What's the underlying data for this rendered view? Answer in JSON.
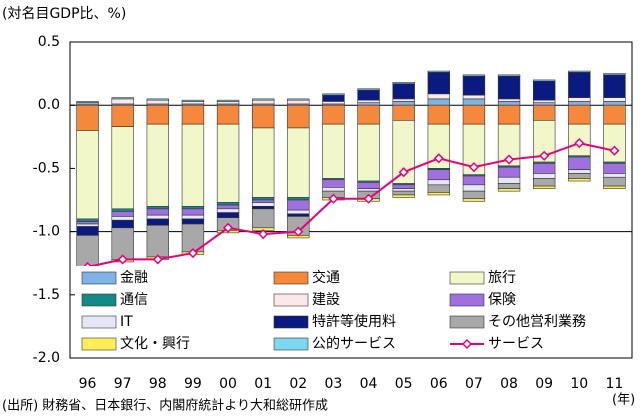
{
  "chart_data": {
    "type": "bar",
    "stacked": true,
    "y_unit_label": "(対名目GDP比、%)",
    "x_unit_label": "(年)",
    "source": "(出所) 財務省、日本銀行、内閣府統計より大和総研作成",
    "categories": [
      "96",
      "97",
      "98",
      "99",
      "00",
      "01",
      "02",
      "03",
      "04",
      "05",
      "06",
      "07",
      "08",
      "09",
      "10",
      "11"
    ],
    "ylim": [
      -2.0,
      0.5
    ],
    "yticks": [
      {
        "value": 0.5,
        "label": "0.5"
      },
      {
        "value": 0.0,
        "label": "0.0"
      },
      {
        "value": -0.5,
        "label": "-0.5"
      },
      {
        "value": -1.0,
        "label": "-1.0"
      },
      {
        "value": -1.5,
        "label": "-1.5"
      },
      {
        "value": -2.0,
        "label": "-2.0"
      }
    ],
    "hlines": [
      0.0,
      -1.0
    ],
    "series": [
      {
        "name": "金融",
        "color": "#7fb2e5",
        "values": [
          0.01,
          0.01,
          0.01,
          0.01,
          0.01,
          0.01,
          0.01,
          0.01,
          0.02,
          0.03,
          0.05,
          0.05,
          0.03,
          0.02,
          0.03,
          0.03
        ]
      },
      {
        "name": "交通",
        "color": "#f5883a",
        "values": [
          -0.2,
          -0.17,
          -0.15,
          -0.15,
          -0.15,
          -0.18,
          -0.18,
          -0.15,
          -0.15,
          -0.12,
          -0.15,
          -0.15,
          -0.15,
          -0.12,
          -0.15,
          -0.15
        ]
      },
      {
        "name": "旅行",
        "color": "#f1f7c8",
        "values": [
          -0.7,
          -0.65,
          -0.65,
          -0.65,
          -0.62,
          -0.55,
          -0.55,
          -0.43,
          -0.45,
          -0.5,
          -0.35,
          -0.4,
          -0.33,
          -0.33,
          -0.25,
          -0.3
        ]
      },
      {
        "name": "通信",
        "color": "#128a8a",
        "values": [
          -0.02,
          -0.02,
          -0.02,
          -0.02,
          -0.02,
          -0.02,
          -0.02,
          -0.01,
          -0.01,
          -0.01,
          -0.01,
          -0.01,
          -0.01,
          -0.01,
          -0.01,
          -0.01
        ]
      },
      {
        "name": "建設",
        "color": "#fbe8ea",
        "values": [
          0.01,
          0.04,
          0.03,
          0.02,
          0.02,
          0.03,
          0.03,
          0.02,
          0.02,
          0.02,
          0.04,
          0.03,
          0.02,
          0.02,
          0.03,
          0.03
        ]
      },
      {
        "name": "保険",
        "color": "#a070e0",
        "values": [
          -0.02,
          -0.04,
          -0.05,
          -0.05,
          -0.03,
          -0.02,
          -0.08,
          -0.06,
          -0.05,
          -0.03,
          -0.08,
          -0.07,
          -0.08,
          -0.08,
          -0.1,
          -0.08
        ]
      },
      {
        "name": "IT",
        "color": "#e6e6f7",
        "values": [
          -0.02,
          -0.03,
          -0.03,
          -0.03,
          -0.03,
          -0.03,
          -0.03,
          -0.03,
          -0.02,
          -0.02,
          -0.04,
          -0.05,
          -0.05,
          -0.04,
          -0.03,
          -0.03
        ]
      },
      {
        "name": "特許等使用料",
        "color": "#0b1a80",
        "values": [
          -0.07,
          -0.06,
          -0.05,
          -0.04,
          -0.04,
          -0.02,
          -0.02,
          0.05,
          0.08,
          0.12,
          0.17,
          0.15,
          0.18,
          0.15,
          0.2,
          0.18
        ]
      },
      {
        "name": "その他営利業務",
        "color": "#a8a8a8",
        "values": [
          -0.25,
          -0.25,
          -0.25,
          -0.22,
          -0.1,
          -0.15,
          -0.15,
          -0.05,
          -0.06,
          -0.03,
          -0.06,
          -0.06,
          -0.04,
          -0.06,
          -0.04,
          -0.07
        ]
      },
      {
        "name": "文化・興行",
        "color": "#ffee55",
        "values": [
          -0.02,
          -0.02,
          -0.02,
          -0.02,
          -0.02,
          -0.02,
          -0.02,
          -0.02,
          -0.02,
          -0.02,
          -0.02,
          -0.02,
          -0.02,
          -0.02,
          -0.02,
          -0.02
        ]
      },
      {
        "name": "公的サービス",
        "color": "#7fd6f0",
        "values": [
          0.01,
          0.01,
          0.01,
          0.01,
          0.01,
          0.01,
          0.01,
          0.01,
          0.01,
          0.01,
          0.01,
          0.01,
          0.01,
          0.01,
          0.01,
          0.01
        ]
      },
      {
        "name": "サービス",
        "type": "line",
        "color": "#e6007e",
        "values": [
          -1.28,
          -1.22,
          -1.22,
          -1.17,
          -0.97,
          -1.02,
          -1.0,
          -0.74,
          -0.74,
          -0.53,
          -0.42,
          -0.49,
          -0.43,
          -0.4,
          -0.3,
          -0.36
        ]
      }
    ]
  }
}
